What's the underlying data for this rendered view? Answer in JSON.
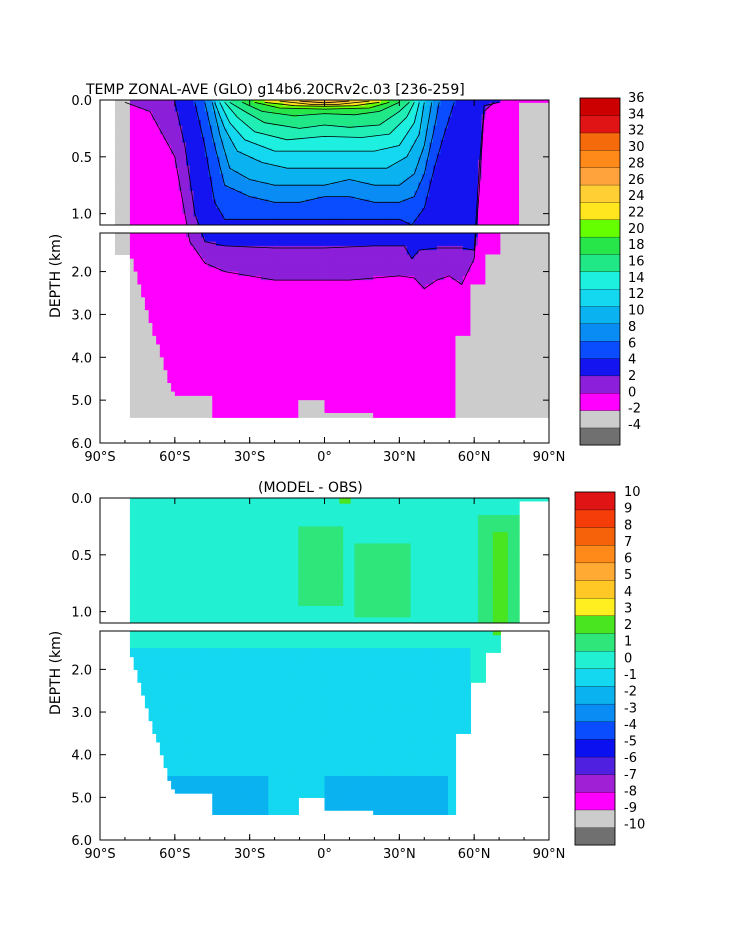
{
  "figure": {
    "title": "TEMP ZONAL-AVE (GLO) g14b6.20CRv2c.03 [236-259]",
    "subtitle": "(MODEL - OBS)",
    "ylabel": "DEPTH (km)"
  },
  "axes": {
    "x_ticks": [
      "90°S",
      "60°S",
      "30°S",
      "0°",
      "30°N",
      "60°N",
      "90°N"
    ],
    "y_ticks_upper": [
      "0.0",
      "0.5",
      "1.0"
    ],
    "y_ticks_lower": [
      "2.0",
      "3.0",
      "4.0",
      "5.0",
      "6.0"
    ]
  },
  "colors": {
    "land": "#cccccc",
    "temp_palette": [
      "#707070",
      "#cccccc",
      "#ff00ff",
      "#8c1fd9",
      "#1414f0",
      "#0a4dff",
      "#0a8cf5",
      "#0ab3f0",
      "#14d7f0",
      "#1ef0e0",
      "#20eeb4",
      "#21e887",
      "#27e649",
      "#66ff00",
      "#ffe61e",
      "#ffcf33",
      "#ffb83d",
      "#ffa43d",
      "#ff8a1a",
      "#f56a0a",
      "#e8401e",
      "#e01414",
      "#cc0000"
    ],
    "diff_palette": [
      "#707070",
      "#cccccc",
      "#ff00ff",
      "#a020d6",
      "#5020e0",
      "#0a10f0",
      "#0a4dff",
      "#0a8cf5",
      "#0ab3f0",
      "#14d7f0",
      "#22f0d2",
      "#2ee67a",
      "#49e520",
      "#ffee20",
      "#ffc825",
      "#ffaa33",
      "#ff8a1a",
      "#f5620a",
      "#f53d0a",
      "#e01414",
      "#cc0000"
    ]
  },
  "chart_data": [
    {
      "type": "heatmap",
      "title": "TEMP ZONAL-AVE (GLO) g14b6.20CRv2c.03 [236-259]",
      "ylabel": "DEPTH (km)",
      "x_ticks": [
        "90°S",
        "60°S",
        "30°S",
        "0°",
        "30°N",
        "60°N",
        "90°N"
      ],
      "x_range_deg": [
        -90,
        90
      ],
      "y_range_km": [
        0,
        6
      ],
      "y_break_km": 1.1,
      "colorbar": {
        "levels": [
          -4,
          -2,
          0,
          2,
          4,
          6,
          8,
          10,
          12,
          14,
          16,
          18,
          20,
          22,
          24,
          26,
          28,
          30,
          32,
          34,
          36
        ],
        "labels": [
          "36",
          "34",
          "32",
          "30",
          "28",
          "26",
          "24",
          "22",
          "20",
          "18",
          "16",
          "14",
          "12",
          "10",
          "8",
          "6",
          "4",
          "2",
          "0",
          "-2",
          "-4"
        ]
      },
      "isotherms": [
        {
          "value": 2,
          "depth_max_km": [
            [
              -80,
              0.02
            ],
            [
              -70,
              0.1
            ],
            [
              -60,
              0.5
            ],
            [
              -54,
              1.3
            ],
            [
              -48,
              1.8
            ],
            [
              -40,
              2.0
            ],
            [
              -30,
              2.1
            ],
            [
              -20,
              2.2
            ],
            [
              -10,
              2.2
            ],
            [
              0,
              2.2
            ],
            [
              10,
              2.2
            ],
            [
              20,
              2.15
            ],
            [
              30,
              2.1
            ],
            [
              36,
              2.15
            ],
            [
              40,
              2.4
            ],
            [
              45,
              2.2
            ],
            [
              50,
              2.1
            ],
            [
              55,
              2.3
            ],
            [
              60,
              1.7
            ],
            [
              62,
              0.8
            ],
            [
              64,
              0.1
            ],
            [
              68,
              0.02
            ]
          ]
        },
        {
          "value": 4,
          "depth_max_km": [
            [
              -60,
              0.02
            ],
            [
              -56,
              0.4
            ],
            [
              -52,
              1.0
            ],
            [
              -48,
              1.3
            ],
            [
              -40,
              1.4
            ],
            [
              -20,
              1.45
            ],
            [
              0,
              1.45
            ],
            [
              20,
              1.4
            ],
            [
              32,
              1.4
            ],
            [
              35,
              1.7
            ],
            [
              38,
              1.5
            ],
            [
              45,
              1.45
            ],
            [
              55,
              1.45
            ],
            [
              60,
              1.5
            ],
            [
              62,
              0.6
            ],
            [
              64,
              0.05
            ],
            [
              70,
              0.02
            ]
          ]
        },
        {
          "value": 6,
          "depth_max_km": [
            [
              -52,
              0.02
            ],
            [
              -48,
              0.4
            ],
            [
              -44,
              0.9
            ],
            [
              -40,
              1.05
            ],
            [
              -30,
              1.05
            ],
            [
              -20,
              1.05
            ],
            [
              0,
              1.05
            ],
            [
              20,
              1.05
            ],
            [
              30,
              1.05
            ],
            [
              35,
              1.1
            ],
            [
              40,
              0.95
            ],
            [
              44,
              0.6
            ],
            [
              48,
              0.3
            ],
            [
              52,
              0.02
            ]
          ]
        },
        {
          "value": 8,
          "depth_max_km": [
            [
              -48,
              0.02
            ],
            [
              -44,
              0.4
            ],
            [
              -40,
              0.75
            ],
            [
              -30,
              0.85
            ],
            [
              -20,
              0.9
            ],
            [
              -10,
              0.9
            ],
            [
              0,
              0.85
            ],
            [
              10,
              0.85
            ],
            [
              20,
              0.9
            ],
            [
              30,
              0.9
            ],
            [
              36,
              0.85
            ],
            [
              40,
              0.65
            ],
            [
              44,
              0.25
            ],
            [
              46,
              0.02
            ]
          ]
        },
        {
          "value": 10,
          "depth_max_km": [
            [
              -45,
              0.02
            ],
            [
              -42,
              0.3
            ],
            [
              -38,
              0.6
            ],
            [
              -30,
              0.7
            ],
            [
              -20,
              0.75
            ],
            [
              -10,
              0.75
            ],
            [
              0,
              0.75
            ],
            [
              10,
              0.7
            ],
            [
              20,
              0.75
            ],
            [
              30,
              0.75
            ],
            [
              36,
              0.65
            ],
            [
              40,
              0.4
            ],
            [
              43,
              0.02
            ]
          ]
        },
        {
          "value": 12,
          "depth_max_km": [
            [
              -44,
              0.02
            ],
            [
              -40,
              0.25
            ],
            [
              -35,
              0.45
            ],
            [
              -25,
              0.55
            ],
            [
              -15,
              0.6
            ],
            [
              0,
              0.6
            ],
            [
              15,
              0.6
            ],
            [
              25,
              0.6
            ],
            [
              33,
              0.5
            ],
            [
              38,
              0.3
            ],
            [
              40,
              0.02
            ]
          ]
        },
        {
          "value": 14,
          "depth_max_km": [
            [
              -42,
              0.02
            ],
            [
              -38,
              0.2
            ],
            [
              -32,
              0.35
            ],
            [
              -20,
              0.45
            ],
            [
              0,
              0.45
            ],
            [
              20,
              0.45
            ],
            [
              30,
              0.4
            ],
            [
              36,
              0.2
            ],
            [
              38,
              0.02
            ]
          ]
        },
        {
          "value": 16,
          "depth_max_km": [
            [
              -40,
              0.02
            ],
            [
              -35,
              0.15
            ],
            [
              -28,
              0.28
            ],
            [
              -15,
              0.35
            ],
            [
              0,
              0.32
            ],
            [
              15,
              0.33
            ],
            [
              26,
              0.3
            ],
            [
              33,
              0.15
            ],
            [
              36,
              0.02
            ]
          ]
        },
        {
          "value": 18,
          "depth_max_km": [
            [
              -38,
              0.02
            ],
            [
              -32,
              0.1
            ],
            [
              -24,
              0.2
            ],
            [
              -10,
              0.25
            ],
            [
              0,
              0.22
            ],
            [
              10,
              0.24
            ],
            [
              22,
              0.22
            ],
            [
              30,
              0.1
            ],
            [
              34,
              0.02
            ]
          ]
        },
        {
          "value": 20,
          "depth_max_km": [
            [
              -33,
              0.02
            ],
            [
              -25,
              0.1
            ],
            [
              -12,
              0.14
            ],
            [
              0,
              0.12
            ],
            [
              12,
              0.13
            ],
            [
              22,
              0.1
            ],
            [
              30,
              0.02
            ]
          ]
        },
        {
          "value": 22,
          "depth_max_km": [
            [
              -28,
              0.02
            ],
            [
              -18,
              0.07
            ],
            [
              0,
              0.08
            ],
            [
              18,
              0.07
            ],
            [
              26,
              0.02
            ]
          ]
        },
        {
          "value": 24,
          "depth_max_km": [
            [
              -24,
              0.02
            ],
            [
              -12,
              0.05
            ],
            [
              0,
              0.055
            ],
            [
              12,
              0.05
            ],
            [
              22,
              0.02
            ]
          ]
        },
        {
          "value": 26,
          "depth_max_km": [
            [
              -18,
              0.01
            ],
            [
              -5,
              0.04
            ],
            [
              5,
              0.04
            ],
            [
              18,
              0.01
            ]
          ]
        },
        {
          "value": 28,
          "depth_max_km": [
            [
              -10,
              0.01
            ],
            [
              0,
              0.025
            ],
            [
              10,
              0.01
            ]
          ]
        }
      ],
      "cold_pockets": [
        {
          "value": 4,
          "x_deg": [
            58,
            70
          ],
          "depth_km": [
            0.0,
            1.0
          ]
        },
        {
          "value": 6,
          "x_deg": [
            60,
            68
          ],
          "depth_km": [
            0.05,
            0.9
          ]
        }
      ]
    },
    {
      "type": "heatmap",
      "title": "(MODEL - OBS)",
      "ylabel": "DEPTH (km)",
      "x_ticks": [
        "90°S",
        "60°S",
        "30°S",
        "0°",
        "30°N",
        "60°N",
        "90°N"
      ],
      "x_range_deg": [
        -90,
        90
      ],
      "y_range_km": [
        0,
        6
      ],
      "y_break_km": 1.1,
      "colorbar": {
        "levels": [
          -10,
          -9,
          -8,
          -7,
          -6,
          -5,
          -4,
          -3,
          -2,
          -1,
          0,
          1,
          2,
          3,
          4,
          5,
          6,
          7,
          8,
          9,
          10
        ],
        "labels": [
          "10",
          "9",
          "8",
          "7",
          "6",
          "5",
          "4",
          "3",
          "2",
          "1",
          "0",
          "-1",
          "-2",
          "-3",
          "-4",
          "-5",
          "-6",
          "-7",
          "-8",
          "-9",
          "-10"
        ]
      },
      "regions": [
        {
          "value_range": [
            -1,
            0
          ],
          "note": "bulk of deep ocean below ~1.6 km and south of 50S"
        },
        {
          "value_range": [
            0,
            1
          ],
          "note": "upper ocean 0-1.5 km and north of 58N"
        },
        {
          "value_range": [
            1,
            2
          ],
          "note": "patches near 0.5-1.0 km between 10S and 35N, and 62N-78N"
        },
        {
          "value_range": [
            2,
            3
          ],
          "note": "core 68N-72N at 0.3-1.2 km, and small spot near 8N at surface"
        },
        {
          "value_range": [
            -2,
            -1
          ],
          "note": "deep south 4.5-5.4 km, 75S-20S and 0-50N"
        }
      ]
    }
  ]
}
